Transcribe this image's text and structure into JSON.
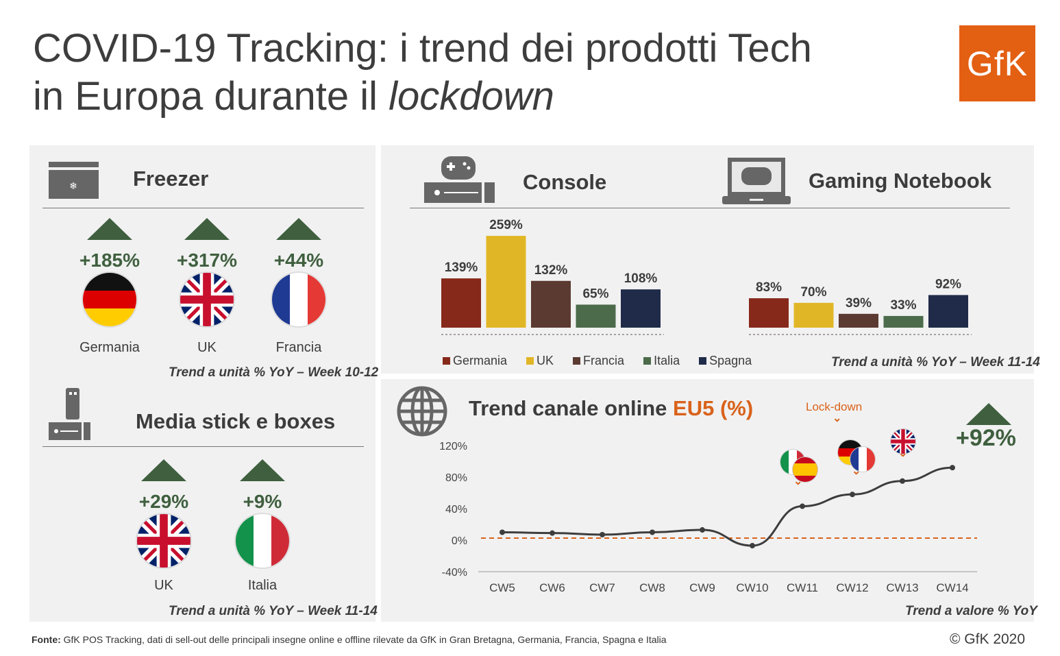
{
  "header": {
    "title_line1": "COVID-19 Tracking: i trend dei prodotti Tech",
    "title_line2_prefix": "in Europa durante il ",
    "title_line2_italic": "lockdown",
    "logo": "GfK"
  },
  "freezer": {
    "title": "Freezer",
    "items": [
      {
        "value": "+185%",
        "country": "Germania"
      },
      {
        "value": "+317%",
        "country": "UK"
      },
      {
        "value": "+44%",
        "country": "Francia"
      }
    ],
    "note": "Trend a unità % YoY – Week 10-12"
  },
  "media": {
    "title": "Media stick e boxes",
    "items": [
      {
        "value": "+29%",
        "country": "UK"
      },
      {
        "value": "+9%",
        "country": "Italia"
      }
    ],
    "note": "Trend a unità % YoY – Week 11-14"
  },
  "gaming_header": {
    "console_title": "Console",
    "notebook_title": "Gaming Notebook",
    "note": "Trend a unità % YoY – Week 11-14"
  },
  "online": {
    "title_prefix": "Trend canale online ",
    "title_accent": "EU5 (%)",
    "lockdown_label": "Lock-down",
    "big_value": "+92%",
    "note": "Trend a valore % YoY"
  },
  "footer": {
    "source_bold": "Fonte:",
    "source": " GfK POS Tracking, dati di sell-out delle principali insegne online e offline rilevate da GfK in Gran Bretagna, Germania, Francia, Spagna e Italia",
    "copyright": "© GfK 2020"
  },
  "colors": {
    "Germania": "#87291a",
    "UK": "#e1b626",
    "Francia": "#5b3a31",
    "Italia": "#4b6b4b",
    "Spagna": "#1f2b48",
    "accent": "#d9621a",
    "green": "#3f5f3f"
  },
  "chart_data": [
    {
      "type": "bar",
      "title": "Console",
      "categories": [
        "Germania",
        "UK",
        "Francia",
        "Italia",
        "Spagna"
      ],
      "values": [
        139,
        259,
        132,
        65,
        108
      ],
      "labels": [
        "139%",
        "259%",
        "132%",
        "65%",
        "108%"
      ]
    },
    {
      "type": "bar",
      "title": "Gaming Notebook",
      "categories": [
        "Germania",
        "UK",
        "Francia",
        "Italia",
        "Spagna"
      ],
      "values": [
        83,
        70,
        39,
        33,
        92
      ],
      "labels": [
        "83%",
        "70%",
        "39%",
        "33%",
        "92%"
      ]
    },
    {
      "type": "line",
      "title": "Trend canale online EU5 (%)",
      "x": [
        "CW5",
        "CW6",
        "CW7",
        "CW8",
        "CW9",
        "CW10",
        "CW11",
        "CW12",
        "CW13",
        "CW14"
      ],
      "values": [
        10,
        9,
        7,
        10,
        13,
        -7,
        43,
        58,
        75,
        92
      ],
      "ylim": [
        -40,
        120
      ],
      "yticks": [
        "120%",
        "80%",
        "40%",
        "0%",
        "-40%"
      ],
      "ytick_values": [
        120,
        80,
        40,
        0,
        -40
      ],
      "reference_line": 0,
      "legend_position": "bottom"
    }
  ]
}
